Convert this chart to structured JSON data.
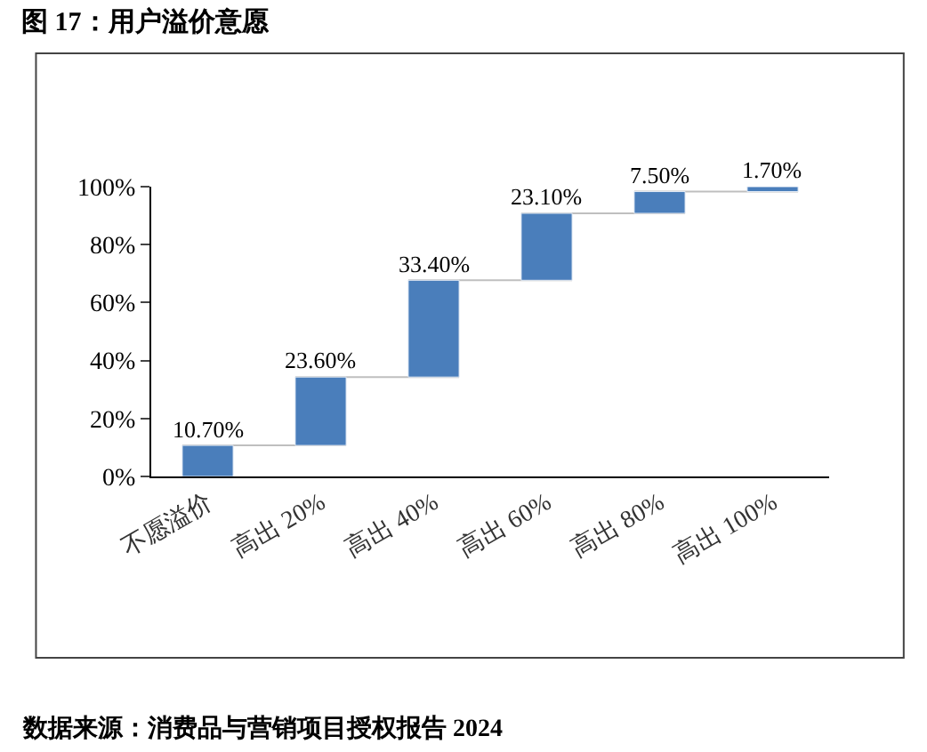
{
  "chart_data": {
    "type": "bar",
    "title": "图 17：用户溢价意愿",
    "categories": [
      "不愿溢价",
      "高出 20%",
      "高出 40%",
      "高出 60%",
      "高出 80%",
      "高出 100%"
    ],
    "values": [
      10.7,
      23.6,
      33.4,
      23.1,
      7.5,
      1.7
    ],
    "base": [
      0,
      10.7,
      34.3,
      67.7,
      90.8,
      98.3
    ],
    "value_labels": [
      "10.70%",
      "23.60%",
      "33.40%",
      "23.10%",
      "7.50%",
      "1.70%"
    ],
    "color": "#4a7ebb",
    "ylim": [
      0,
      100
    ],
    "yticks": [
      {
        "value": 0,
        "label": "0%"
      },
      {
        "value": 20,
        "label": "20%"
      },
      {
        "value": 40,
        "label": "40%"
      },
      {
        "value": 60,
        "label": "60%"
      },
      {
        "value": 80,
        "label": "80%"
      },
      {
        "value": 100,
        "label": "100%"
      }
    ],
    "grid": false,
    "annotations": [
      "数据来源：消费品与营销项目授权报告 2024"
    ]
  }
}
